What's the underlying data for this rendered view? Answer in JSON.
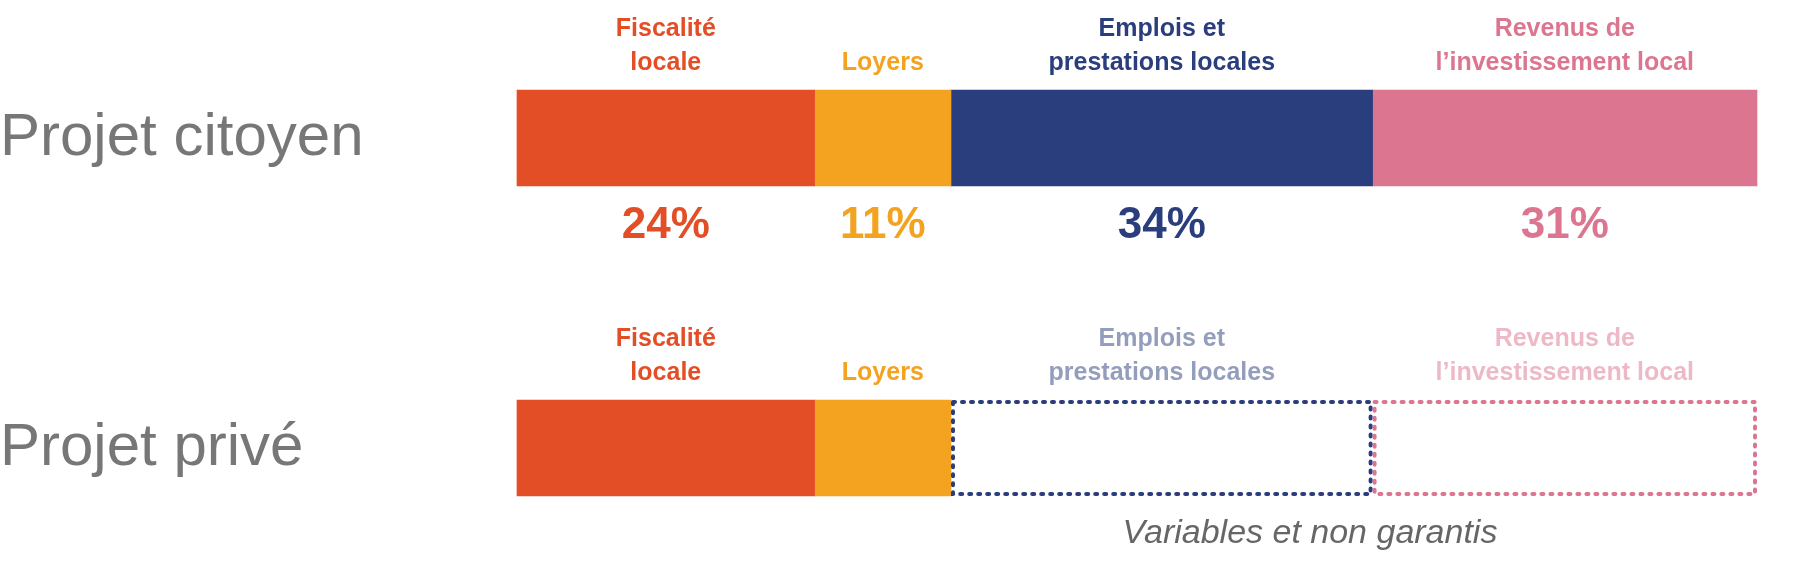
{
  "chart_data": {
    "type": "bar",
    "orientation": "horizontal",
    "stacked": true,
    "categories": [
      "Projet citoyen",
      "Projet privé"
    ],
    "xlim": [
      0,
      100
    ],
    "tick_labels": "y",
    "grid": false,
    "legend": false,
    "series": [
      {
        "name": "Fiscalité\nlocale",
        "color": "#e34e26",
        "values": [
          24,
          24
        ],
        "value_labels": [
          "24%",
          null
        ]
      },
      {
        "name": "Loyers",
        "color": "#f4a321",
        "values": [
          11,
          11
        ],
        "value_labels": [
          "11%",
          null
        ]
      },
      {
        "name": "Emplois et\nprestations locales",
        "color": "#2a3d7c",
        "values": [
          34,
          null
        ],
        "value_labels": [
          "34%",
          null
        ]
      },
      {
        "name": "Revenus de\nl’investissement local",
        "color": "#dc7690",
        "values": [
          31,
          null
        ],
        "value_labels": [
          "31%",
          null
        ]
      },
      {
        "name": "Emplois et\nprestations locales",
        "color": "#2a3d7c",
        "values": [
          null,
          34
        ],
        "line_style": "dotted"
      },
      {
        "name": "Revenus de\nl’investissement local",
        "color": "#dc7690",
        "values": [
          null,
          31
        ],
        "line_style": "dotted"
      }
    ],
    "annotations": [
      "Variables et non garantis"
    ]
  }
}
